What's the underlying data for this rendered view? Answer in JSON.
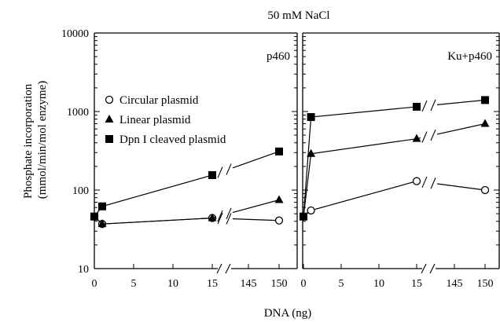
{
  "chart_data": {
    "type": "line",
    "title": "50 mM NaCl",
    "xlabel": "DNA (ng)",
    "ylabel": "Phosphate incorporation (mmol/min/mol enzyme)",
    "ylabel_lines": [
      "Phosphate incorporation",
      "(mmol/min/mol enzyme)"
    ],
    "yscale": "log",
    "ylim": [
      10,
      10000
    ],
    "y_ticks": [
      10,
      100,
      1000,
      10000
    ],
    "y_tick_labels": [
      "10",
      "100",
      "1000",
      "10000"
    ],
    "x_axis_break": true,
    "x_ticks": [
      0,
      5,
      10,
      15,
      145,
      150
    ],
    "x_tick_labels": [
      "0",
      "5",
      "10",
      "15",
      "145",
      "150"
    ],
    "legend": {
      "placement": "left, inside first panel",
      "entries": [
        {
          "label": "Circular plasmid",
          "marker": "open-circle"
        },
        {
          "label": "Linear plasmid",
          "marker": "filled-triangle"
        },
        {
          "label": "Dpn I cleaved plasmid",
          "marker": "filled-square"
        }
      ]
    },
    "panels": [
      {
        "label": "p460",
        "x": [
          0,
          1,
          15,
          150
        ],
        "series": [
          {
            "name": "Circular plasmid",
            "marker": "open-circle",
            "values": [
              46,
              37,
              44,
              41
            ]
          },
          {
            "name": "Linear plasmid",
            "marker": "filled-triangle",
            "values": [
              46,
              37,
              44,
              75
            ]
          },
          {
            "name": "Dpn I cleaved plasmid",
            "marker": "filled-square",
            "values": [
              46,
              62,
              155,
              310
            ]
          }
        ]
      },
      {
        "label": "Ku+p460",
        "x": [
          0,
          1,
          15,
          150
        ],
        "series": [
          {
            "name": "Circular plasmid",
            "marker": "open-circle",
            "values": [
              46,
              55,
              130,
              100
            ]
          },
          {
            "name": "Linear plasmid",
            "marker": "filled-triangle",
            "values": [
              46,
              290,
              450,
              700
            ]
          },
          {
            "name": "Dpn I cleaved plasmid",
            "marker": "filled-square",
            "values": [
              46,
              850,
              1150,
              1400
            ]
          }
        ]
      }
    ]
  }
}
